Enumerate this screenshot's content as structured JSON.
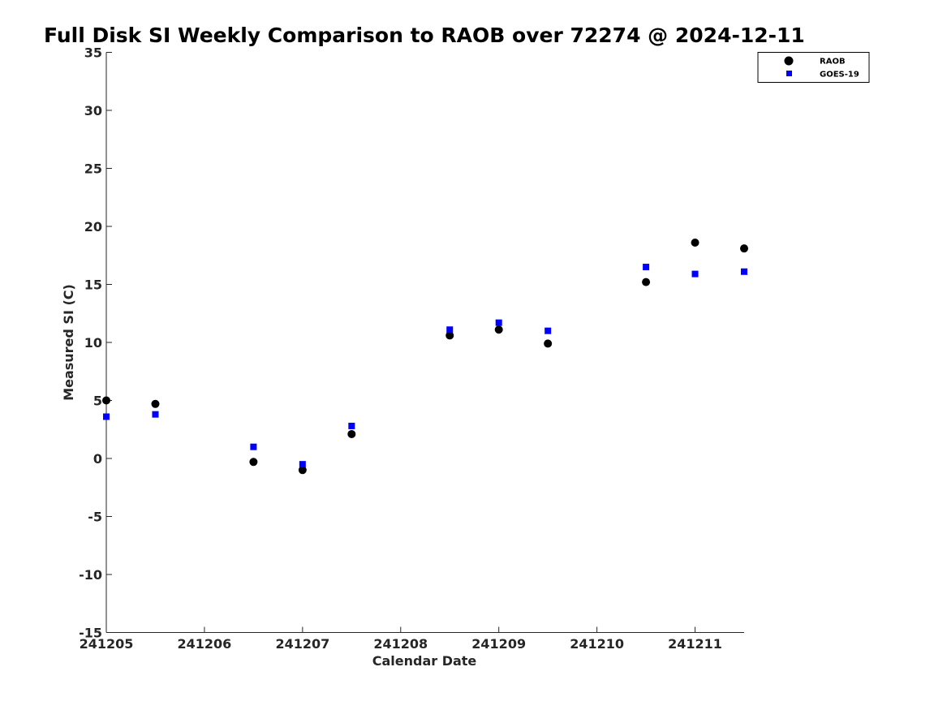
{
  "chart_data": {
    "type": "scatter",
    "title": "Full Disk SI Weekly Comparison to RAOB over 72274 @ 2024-12-11",
    "xlabel": "Calendar Date",
    "ylabel": "Measured SI (C)",
    "xlim": [
      241205,
      241211.5
    ],
    "ylim": [
      -15,
      35
    ],
    "x_ticks": [
      241205,
      241206,
      241207,
      241208,
      241209,
      241210,
      241211
    ],
    "x_tick_labels": [
      "241205",
      "241206",
      "241207",
      "241208",
      "241209",
      "241210",
      "241211"
    ],
    "y_ticks": [
      -15,
      -10,
      -5,
      0,
      5,
      10,
      15,
      20,
      25,
      30,
      35
    ],
    "y_tick_labels": [
      "-15",
      "-10",
      "-5",
      "0",
      "5",
      "10",
      "15",
      "20",
      "25",
      "30",
      "35"
    ],
    "grid": false,
    "legend_position": "top-right",
    "series": [
      {
        "name": "RAOB",
        "marker": "circle",
        "color": "#000000",
        "points": [
          {
            "x": 241205.0,
            "y": 5.0
          },
          {
            "x": 241205.5,
            "y": 4.7
          },
          {
            "x": 241206.5,
            "y": -0.3
          },
          {
            "x": 241207.0,
            "y": -1.0
          },
          {
            "x": 241207.5,
            "y": 2.1
          },
          {
            "x": 241208.5,
            "y": 10.6
          },
          {
            "x": 241209.0,
            "y": 11.1
          },
          {
            "x": 241209.5,
            "y": 9.9
          },
          {
            "x": 241210.5,
            "y": 15.2
          },
          {
            "x": 241211.0,
            "y": 18.6
          },
          {
            "x": 241211.5,
            "y": 18.1
          }
        ]
      },
      {
        "name": "GOES-19",
        "marker": "square",
        "color": "#0000ff",
        "points": [
          {
            "x": 241205.0,
            "y": 3.6
          },
          {
            "x": 241205.5,
            "y": 3.8
          },
          {
            "x": 241206.5,
            "y": 1.0
          },
          {
            "x": 241207.0,
            "y": -0.5
          },
          {
            "x": 241207.5,
            "y": 2.8
          },
          {
            "x": 241208.5,
            "y": 11.1
          },
          {
            "x": 241209.0,
            "y": 11.7
          },
          {
            "x": 241209.5,
            "y": 11.0
          },
          {
            "x": 241210.5,
            "y": 16.5
          },
          {
            "x": 241211.0,
            "y": 15.9
          },
          {
            "x": 241211.5,
            "y": 16.1
          }
        ]
      }
    ]
  }
}
